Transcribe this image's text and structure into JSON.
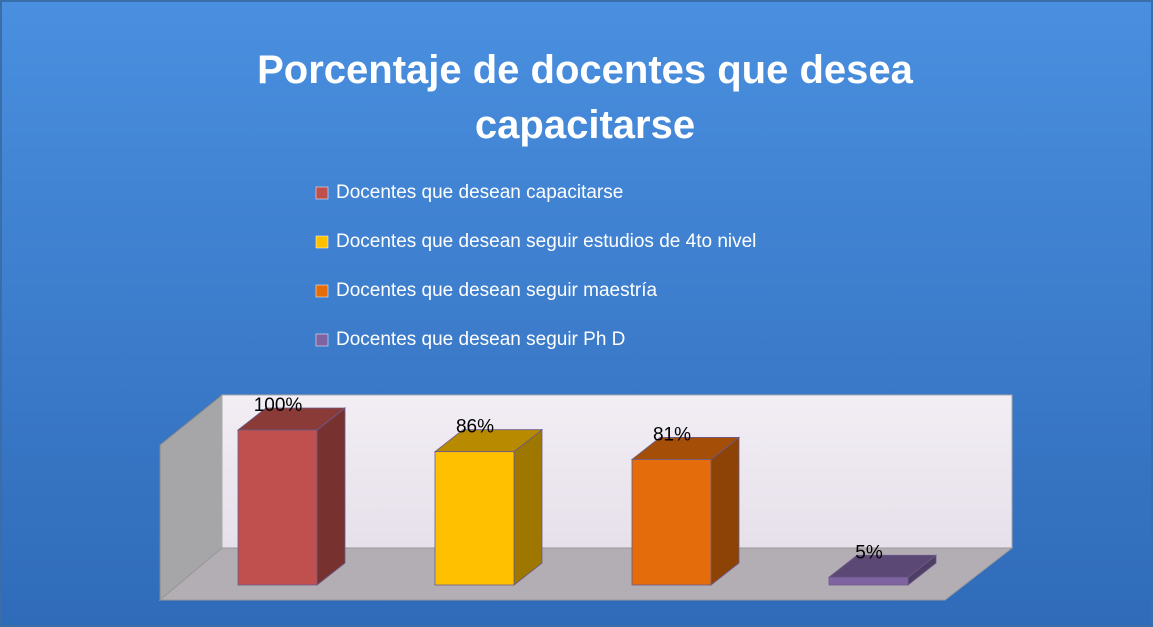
{
  "chart_data": {
    "type": "bar3d",
    "title": "Porcentaje de docentes que desea capacitarse",
    "ylim": [
      0,
      100
    ],
    "series": [
      {
        "name": "Docentes que desean capacitarse",
        "color": "#c0504d",
        "values": [
          100
        ],
        "value_labels": [
          "100%"
        ]
      },
      {
        "name": "Docentes que desean seguir estudios de 4to nivel",
        "color": "#ffc000",
        "values": [
          86
        ],
        "value_labels": [
          "86%"
        ]
      },
      {
        "name": "Docentes que desean seguir maestría",
        "color": "#e46c0a",
        "values": [
          81
        ],
        "value_labels": [
          "81%"
        ]
      },
      {
        "name": "Docentes que desean seguir Ph D",
        "color": "#8064a2",
        "values": [
          5
        ],
        "value_labels": [
          "5%"
        ]
      }
    ]
  }
}
